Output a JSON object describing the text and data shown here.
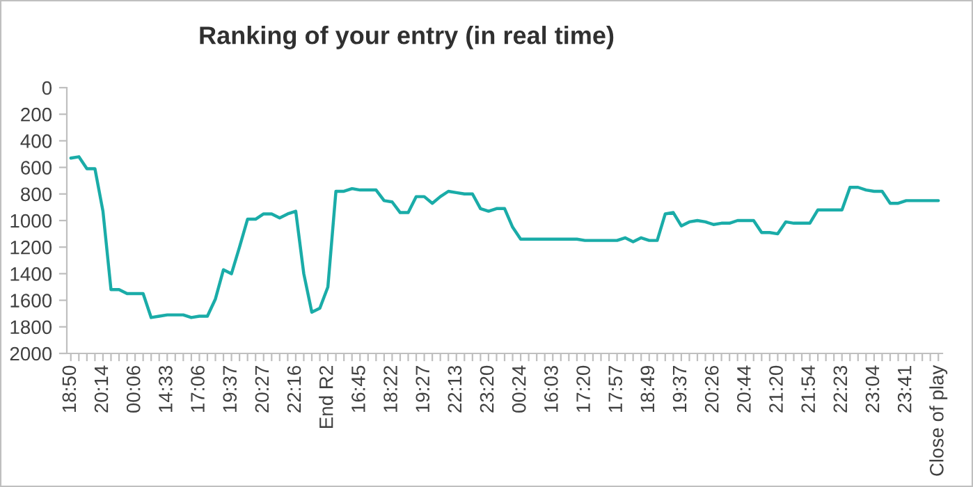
{
  "chart_data": {
    "type": "line",
    "title": "Ranking of your entry (in real time)",
    "categories": [
      "18:50",
      null,
      null,
      null,
      "20:14",
      null,
      null,
      null,
      "00:06",
      null,
      null,
      null,
      "14:33",
      null,
      null,
      null,
      "17:06",
      null,
      null,
      null,
      "19:37",
      null,
      null,
      null,
      "20:27",
      null,
      null,
      null,
      "22:16",
      null,
      null,
      null,
      "End R2",
      null,
      null,
      null,
      "16:45",
      null,
      null,
      null,
      "18:22",
      null,
      null,
      null,
      "19:27",
      null,
      null,
      null,
      "22:13",
      null,
      null,
      null,
      "23:20",
      null,
      null,
      null,
      "00:24",
      null,
      null,
      null,
      "16:03",
      null,
      null,
      null,
      "17:20",
      null,
      null,
      null,
      "17:57",
      null,
      null,
      null,
      "18:49",
      null,
      null,
      null,
      "19:37",
      null,
      null,
      null,
      "20:26",
      null,
      null,
      null,
      "20:44",
      null,
      null,
      null,
      "21:20",
      null,
      null,
      null,
      "21:54",
      null,
      null,
      null,
      "22:23",
      null,
      null,
      null,
      "23:04",
      null,
      null,
      null,
      "23:41",
      null,
      null,
      null,
      "Close of play"
    ],
    "series": [
      {
        "color": "#1aaca8",
        "values": [
          530,
          520,
          610,
          610,
          930,
          1520,
          1520,
          1550,
          1550,
          1550,
          1730,
          1720,
          1710,
          1710,
          1710,
          1730,
          1720,
          1720,
          1590,
          1370,
          1400,
          1200,
          990,
          990,
          950,
          950,
          980,
          950,
          930,
          1400,
          1690,
          1660,
          1500,
          780,
          780,
          760,
          770,
          770,
          770,
          850,
          860,
          940,
          940,
          820,
          820,
          870,
          820,
          780,
          790,
          800,
          800,
          910,
          930,
          910,
          910,
          1050,
          1140,
          1140,
          1140,
          1140,
          1140,
          1140,
          1140,
          1140,
          1150,
          1150,
          1150,
          1150,
          1150,
          1130,
          1160,
          1130,
          1150,
          1150,
          950,
          940,
          1040,
          1010,
          1000,
          1010,
          1030,
          1020,
          1020,
          1000,
          1000,
          1000,
          1090,
          1090,
          1100,
          1010,
          1020,
          1020,
          1020,
          920,
          920,
          920,
          920,
          750,
          750,
          770,
          780,
          780,
          870,
          870,
          850,
          850,
          850,
          850,
          850
        ]
      }
    ],
    "ylim": [
      2000,
      0
    ],
    "yticks": [
      0,
      200,
      400,
      600,
      800,
      1000,
      1200,
      1400,
      1600,
      1800,
      2000
    ],
    "grid": false,
    "legend": false,
    "marker": "none",
    "line_style": "solid"
  }
}
